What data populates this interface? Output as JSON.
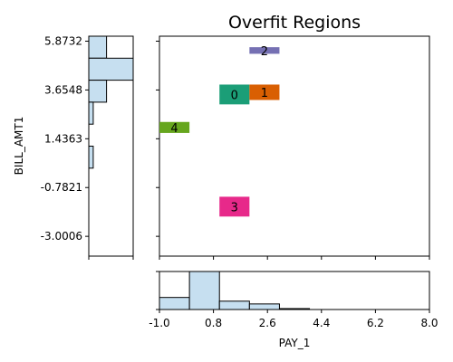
{
  "chart_data": {
    "type": "heatmap",
    "title": "Overfit Regions",
    "xlabel": "PAY_1",
    "ylabel": "BILL_AMT1",
    "xlim": [
      -1.0,
      8.0
    ],
    "ylim": [
      -3.9,
      6.1
    ],
    "x_ticks": [
      -1.0,
      0.8,
      2.6,
      4.4,
      6.2,
      8.0
    ],
    "x_tick_labels": [
      "-1.0",
      "0.8",
      "2.6",
      "4.4",
      "6.2",
      "8.0"
    ],
    "y_ticks": [
      -3.0006,
      -0.7821,
      1.4363,
      3.6548,
      5.8732
    ],
    "y_tick_labels": [
      "-3.0006",
      "-0.7821",
      "1.4363",
      "3.6548",
      "5.8732"
    ],
    "regions": [
      {
        "label": "0",
        "x0": 1.0,
        "x1": 2.0,
        "y0": 3.0,
        "y1": 3.9,
        "color": "#1b9e77"
      },
      {
        "label": "1",
        "x0": 2.0,
        "x1": 3.0,
        "y0": 3.2,
        "y1": 3.9,
        "color": "#d95f02"
      },
      {
        "label": "2",
        "x0": 2.0,
        "x1": 3.0,
        "y0": 5.3,
        "y1": 5.6,
        "color": "#7570b3"
      },
      {
        "label": "3",
        "x0": 1.0,
        "x1": 2.0,
        "y0": -2.1,
        "y1": -1.2,
        "color": "#e7298a"
      },
      {
        "label": "4",
        "x0": -1.0,
        "x1": 0.0,
        "y0": 1.7,
        "y1": 2.2,
        "color": "#66a61e"
      }
    ],
    "x_histogram": {
      "bins": [
        [
          -1.0,
          0.0
        ],
        [
          0.0,
          1.0
        ],
        [
          1.0,
          2.0
        ],
        [
          2.0,
          3.0
        ],
        [
          3.0,
          4.0
        ]
      ],
      "counts": [
        13,
        41,
        9,
        6,
        1
      ],
      "ylim": [
        0,
        41
      ],
      "color": "#c6dff0"
    },
    "y_histogram": {
      "bins": [
        [
          5.1,
          6.1
        ],
        [
          4.1,
          5.1
        ],
        [
          3.1,
          4.1
        ],
        [
          2.1,
          3.1
        ],
        [
          1.1,
          2.1
        ],
        [
          0.1,
          1.1
        ],
        [
          -0.9,
          0.1
        ],
        [
          -1.9,
          -0.9
        ],
        [
          -2.9,
          -1.9
        ],
        [
          -3.9,
          -2.9
        ]
      ],
      "counts": [
        4,
        10,
        4,
        1,
        0,
        1,
        0,
        0,
        0,
        0
      ],
      "xlim": [
        0,
        10
      ],
      "color": "#c6dff0"
    }
  }
}
